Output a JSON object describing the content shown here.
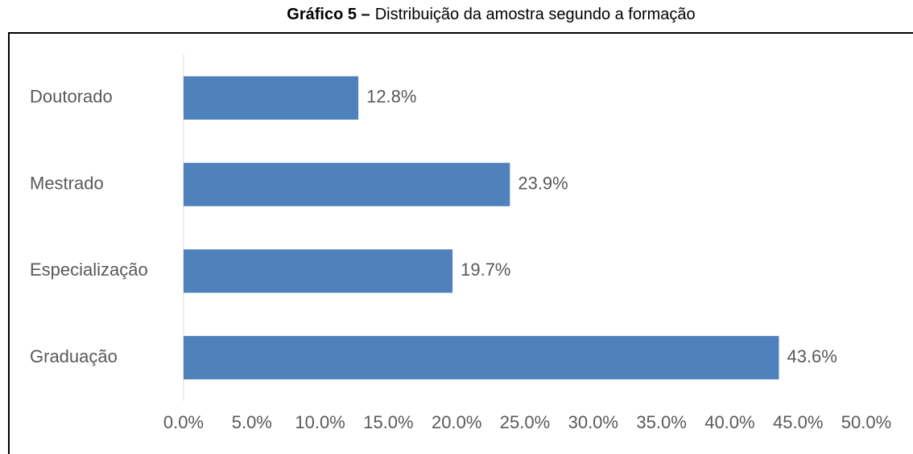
{
  "chart_data": {
    "type": "hbar",
    "title_prefix": "Gráfico 5 –",
    "title": "Distribuição da amostra segundo a formação",
    "categories": [
      "Doutorado",
      "Mestrado",
      "Especialização",
      "Graduação"
    ],
    "values": [
      12.8,
      23.9,
      19.7,
      43.6
    ],
    "value_labels": [
      "12.8%",
      "23.9%",
      "19.7%",
      "43.6%"
    ],
    "color": "#4f81bd",
    "xlim": [
      0,
      50
    ],
    "xticks": [
      {
        "value": 0,
        "label": "0.0%"
      },
      {
        "value": 5,
        "label": "5.0%"
      },
      {
        "value": 10,
        "label": "10.0%"
      },
      {
        "value": 15,
        "label": "15.0%"
      },
      {
        "value": 20,
        "label": "20.0%"
      },
      {
        "value": 25,
        "label": "25.0%"
      },
      {
        "value": 30,
        "label": "30.0%"
      },
      {
        "value": 35,
        "label": "35.0%"
      },
      {
        "value": 40,
        "label": "40.0%"
      },
      {
        "value": 45,
        "label": "45.0%"
      },
      {
        "value": 50,
        "label": "50.0%"
      }
    ],
    "grid": false
  }
}
